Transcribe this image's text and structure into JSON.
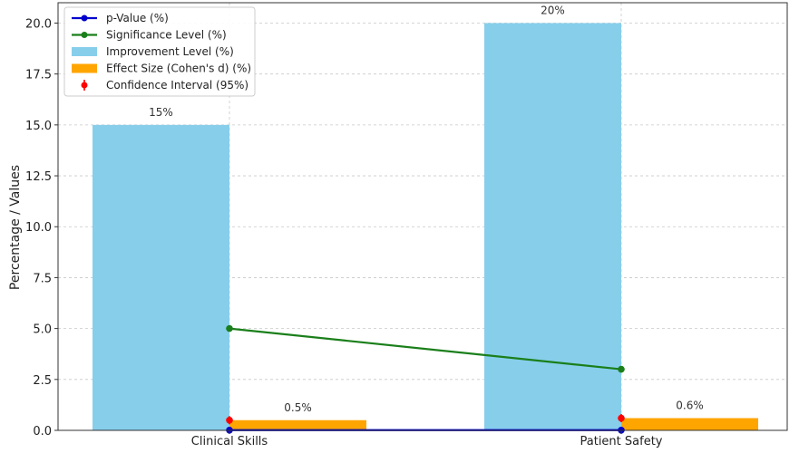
{
  "chart_data": {
    "type": "bar",
    "categories": [
      "Clinical Skills",
      "Patient Safety"
    ],
    "series": [
      {
        "name": "Improvement Level (%)",
        "kind": "bar",
        "values": [
          15,
          20
        ],
        "color": "#87ceeb",
        "labels": [
          "15%",
          "20%"
        ]
      },
      {
        "name": "Effect Size (Cohen's d) (%)",
        "kind": "bar",
        "values": [
          0.5,
          0.6
        ],
        "color": "#ffa500",
        "labels": [
          "0.5%",
          "0.6%"
        ]
      },
      {
        "name": "p-Value (%)",
        "kind": "line",
        "values": [
          0.01,
          0.01
        ],
        "color": "#0000cd"
      },
      {
        "name": "Significance Level (%)",
        "kind": "line",
        "values": [
          5,
          3
        ],
        "color": "#1a7f1a"
      },
      {
        "name": "Confidence Interval (95%)",
        "kind": "errorbar",
        "values": [
          0.5,
          0.6
        ],
        "error": [
          0.2,
          0.2
        ],
        "color": "#ff0000"
      }
    ],
    "ylabel": "Percentage / Values",
    "ylim": [
      0,
      21
    ],
    "yticks": [
      0.0,
      2.5,
      5.0,
      7.5,
      10.0,
      12.5,
      15.0,
      17.5,
      20.0
    ],
    "ytick_labels": [
      "0.0",
      "2.5",
      "5.0",
      "7.5",
      "10.0",
      "12.5",
      "15.0",
      "17.5",
      "20.0"
    ],
    "grid": true,
    "legend_position": "top-left",
    "legend_order": [
      "p-Value (%)",
      "Significance Level (%)",
      "Improvement Level (%)",
      "Effect Size (Cohen's d) (%)",
      "Confidence Interval (95%)"
    ]
  }
}
